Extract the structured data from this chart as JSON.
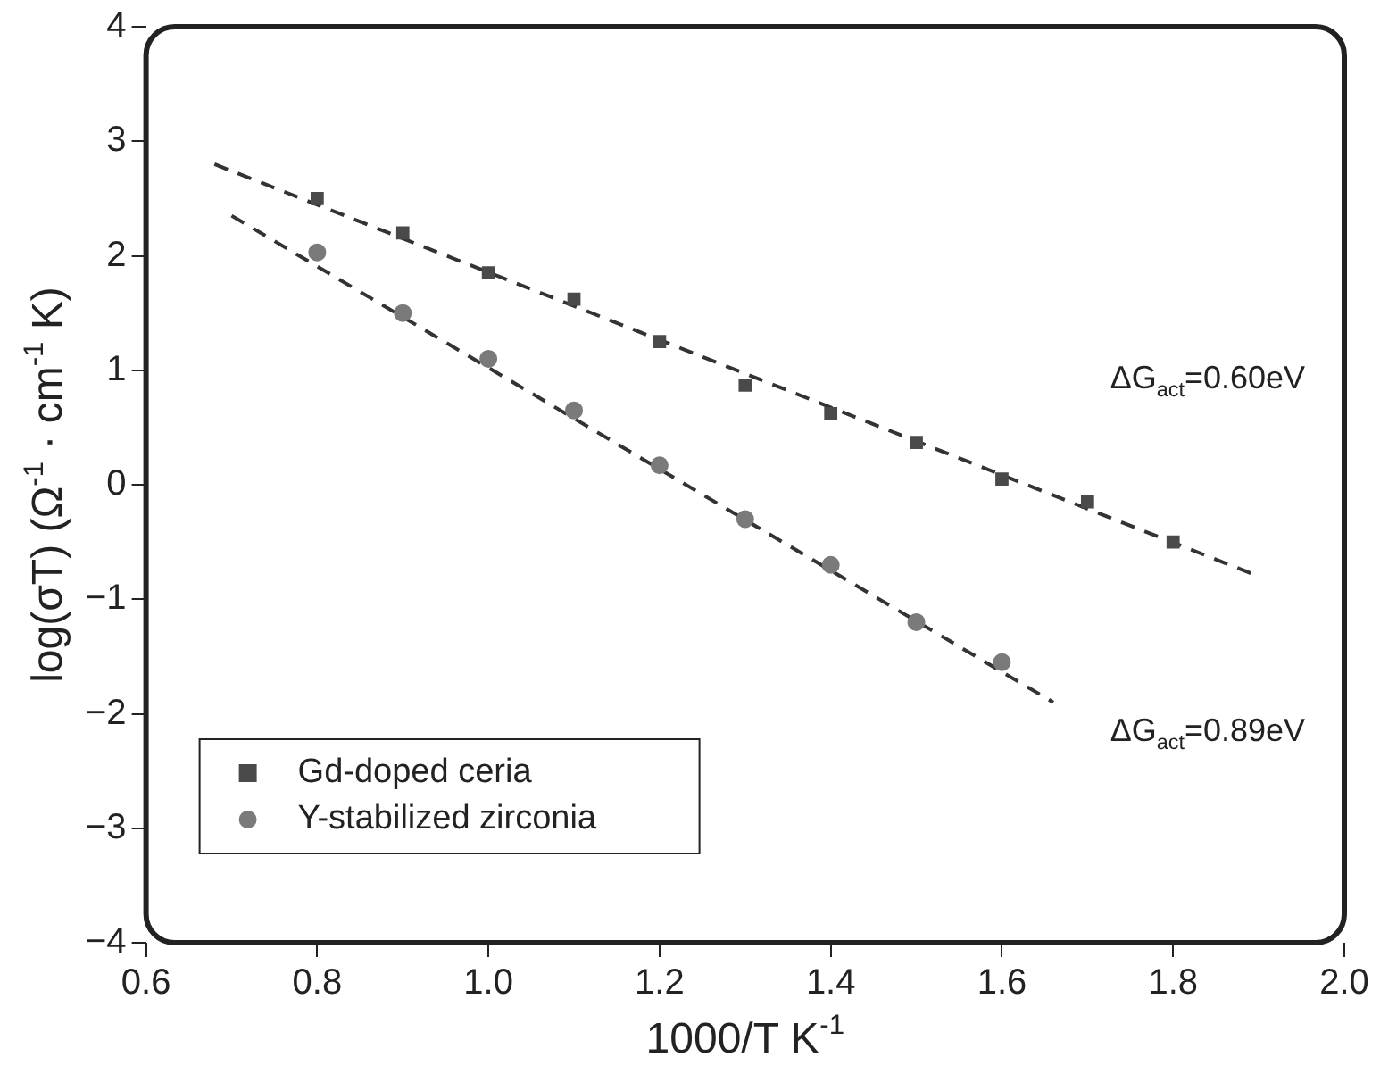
{
  "chart_data": {
    "type": "scatter",
    "xlabel": "1000/T K$^{-1}$",
    "ylabel": "log(σT) (Ω$^{-1}$ · cm$^{-1}$ K)",
    "xlim": [
      0.6,
      2.0
    ],
    "xticks": [
      {
        "value": 0.6,
        "label": "0.6"
      },
      {
        "value": 0.8,
        "label": "0.8"
      },
      {
        "value": 1.0,
        "label": "1.0"
      },
      {
        "value": 1.2,
        "label": "1.2"
      },
      {
        "value": 1.4,
        "label": "1.4"
      },
      {
        "value": 1.6,
        "label": "1.6"
      },
      {
        "value": 1.8,
        "label": "1.8"
      },
      {
        "value": 2.0,
        "label": "2.0"
      }
    ],
    "ylim": [
      -4,
      4
    ],
    "yticks": [
      -4,
      -3,
      -2,
      -1,
      0,
      1,
      2,
      3,
      4
    ],
    "grid": false,
    "legend": "bottom left",
    "series": [
      {
        "name": "Gd-doped ceria",
        "color": "#4a4a4a",
        "marker": "square",
        "x": [
          0.8,
          0.9,
          1.0,
          1.1,
          1.2,
          1.3,
          1.4,
          1.5,
          1.6,
          1.7,
          1.8
        ],
        "values": [
          2.5,
          2.2,
          1.85,
          1.62,
          1.25,
          0.87,
          0.62,
          0.37,
          0.05,
          -0.15,
          -0.5
        ]
      },
      {
        "name": "Y-stabilized zirconia",
        "color": "#7a7a7a",
        "marker": "circle",
        "x": [
          0.8,
          0.9,
          1.0,
          1.1,
          1.2,
          1.3,
          1.4,
          1.5,
          1.6
        ],
        "values": [
          2.03,
          1.5,
          1.1,
          0.65,
          0.17,
          -0.3,
          -0.7,
          -1.2,
          -1.55
        ]
      },
      {
        "type": "line",
        "color": "#333333",
        "line_style": "dashed",
        "marker": "none",
        "x": [
          0.68,
          1.9
        ],
        "values": [
          2.8,
          -0.8
        ]
      },
      {
        "type": "line",
        "color": "#333333",
        "line_style": "dashed",
        "marker": "none",
        "x": [
          0.7,
          1.66
        ],
        "values": [
          2.35,
          -1.9
        ]
      }
    ],
    "annotations": [
      "ΔG$_{act}$=0.60eV",
      "ΔG$_{act}$=0.89eV"
    ]
  }
}
